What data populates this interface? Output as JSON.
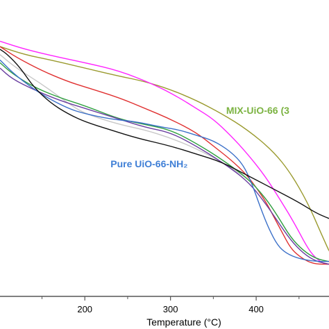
{
  "chart_data": {
    "type": "line",
    "xlabel": "Temperature (°C)",
    "ylabel": "",
    "title": "",
    "xlim": [
      101,
      485
    ],
    "ylim": [
      0,
      100
    ],
    "x_ticks": [
      200,
      300,
      400
    ],
    "x_tick_labels": [
      "200",
      "300",
      "400"
    ],
    "grid": false,
    "annotations": [
      {
        "text": "MIX-UiO-66 (3",
        "x": 365,
        "y": 68,
        "color": "#7cb342"
      },
      {
        "text": "Pure UiO-66-NH₂",
        "x": 230,
        "y": 48,
        "color": "#3f7fd6"
      }
    ],
    "series": [
      {
        "color": "#9a9a2e",
        "x": [
          101,
          130,
          160,
          200,
          240,
          270,
          300,
          330,
          360,
          390,
          420,
          440,
          460,
          475,
          485
        ],
        "y": [
          93,
          90,
          88,
          85,
          82,
          80,
          77,
          73,
          68,
          62,
          54,
          46,
          35,
          24,
          17
        ]
      },
      {
        "color": "#ff22ff",
        "x": [
          101,
          130,
          170,
          200,
          240,
          280,
          310,
          330,
          350,
          370,
          390,
          410,
          430,
          445,
          460,
          470,
          480,
          485
        ],
        "y": [
          95,
          92,
          89,
          87,
          84,
          79,
          74,
          70,
          66,
          60,
          53,
          45,
          35,
          27,
          18,
          14,
          12,
          12
        ]
      },
      {
        "color": "#e03030",
        "x": [
          101,
          120,
          150,
          180,
          200,
          240,
          270,
          300,
          330,
          350,
          370,
          390,
          410,
          420,
          430,
          440,
          450,
          460,
          470,
          485
        ],
        "y": [
          93,
          89,
          84,
          80,
          78,
          74,
          70,
          66,
          61,
          56,
          51,
          45,
          36,
          30,
          24,
          18,
          15,
          13,
          12,
          12
        ]
      },
      {
        "color": "#c8c8c8",
        "x": [
          101,
          120,
          150,
          180,
          200,
          240,
          270,
          300,
          330,
          360,
          390,
          410,
          425,
          440,
          455,
          470,
          485
        ],
        "y": [
          90,
          85,
          79,
          72,
          68,
          64,
          62,
          59,
          55,
          50,
          44,
          37,
          30,
          22,
          17,
          14,
          13
        ]
      },
      {
        "color": "#2fa040",
        "x": [
          101,
          115,
          140,
          170,
          200,
          240,
          270,
          300,
          330,
          360,
          390,
          410,
          425,
          440,
          455,
          470,
          485
        ],
        "y": [
          87,
          83,
          78,
          74,
          71,
          66,
          64,
          62,
          57,
          51,
          44,
          37,
          30,
          22,
          17,
          14,
          13
        ]
      },
      {
        "color": "#6a3fa0",
        "x": [
          101,
          115,
          140,
          170,
          200,
          240,
          270,
          300,
          330,
          360,
          390,
          410,
          425,
          440,
          455,
          470,
          485
        ],
        "y": [
          85,
          81,
          77,
          73,
          70,
          66,
          63,
          61,
          56,
          50,
          43,
          35,
          28,
          21,
          16,
          13,
          12
        ]
      },
      {
        "color": "#3a6fc8",
        "x": [
          101,
          120,
          150,
          180,
          200,
          230,
          260,
          290,
          310,
          330,
          350,
          370,
          385,
          395,
          405,
          415,
          425,
          435,
          450,
          470,
          485
        ],
        "y": [
          88,
          82,
          75,
          70,
          68,
          66,
          65,
          63,
          62,
          60,
          58,
          54,
          49,
          42,
          33,
          25,
          19,
          16,
          14,
          13,
          13
        ]
      },
      {
        "color": "#111111",
        "x": [
          101,
          110,
          125,
          140,
          160,
          180,
          200,
          230,
          260,
          300,
          330,
          360,
          390,
          420,
          450,
          470,
          485
        ],
        "y": [
          92,
          90,
          85,
          78,
          72,
          68,
          65,
          62,
          59,
          56,
          53,
          50,
          45,
          40,
          35,
          31,
          29
        ]
      }
    ]
  }
}
